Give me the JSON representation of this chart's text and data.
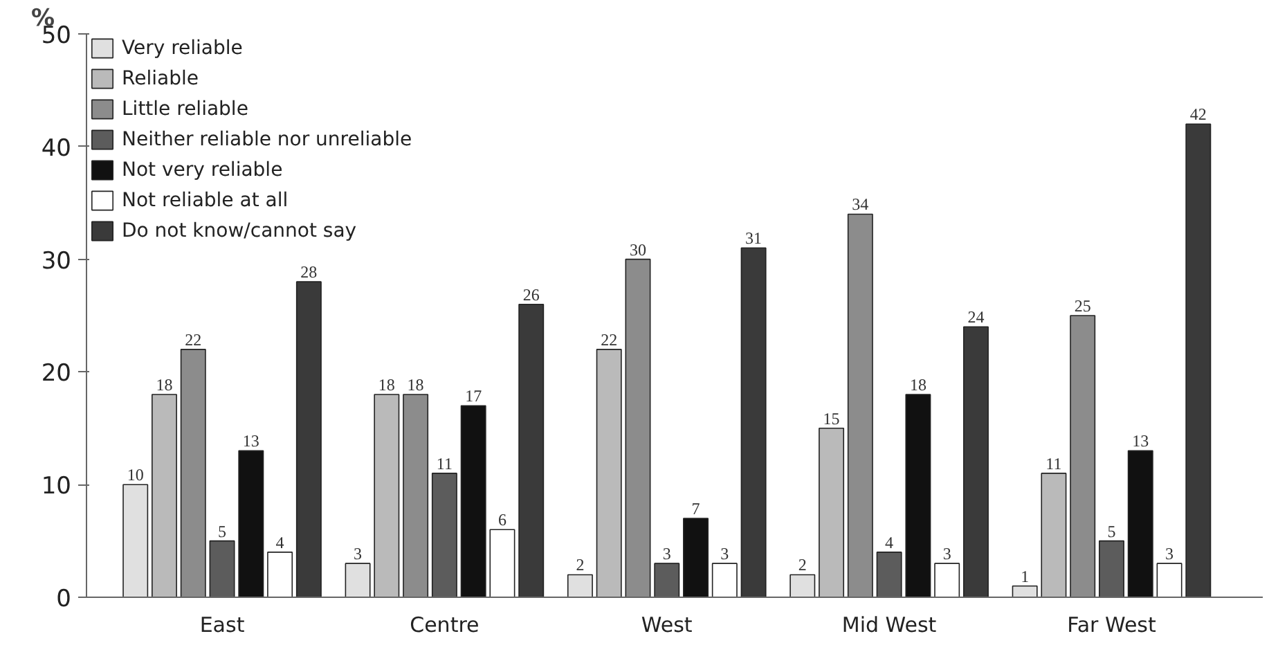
{
  "chart_data": {
    "type": "bar",
    "ylabel": "%",
    "categories": [
      "East",
      "Centre",
      "West",
      "Mid West",
      "Far West"
    ],
    "series": [
      {
        "name": "Very reliable",
        "color": "#e0e0e0",
        "values": [
          10,
          3,
          2,
          2,
          1
        ]
      },
      {
        "name": "Reliable",
        "color": "#bababa",
        "values": [
          18,
          18,
          22,
          15,
          11
        ]
      },
      {
        "name": "Little reliable",
        "color": "#8c8c8c",
        "values": [
          22,
          18,
          30,
          34,
          25
        ]
      },
      {
        "name": "Neither reliable nor unreliable",
        "color": "#5c5c5c",
        "values": [
          5,
          11,
          3,
          4,
          5
        ]
      },
      {
        "name": "Not very reliable",
        "color": "#111111",
        "values": [
          13,
          17,
          7,
          18,
          13
        ]
      },
      {
        "name": "Not reliable at all",
        "color": "#ffffff",
        "values": [
          4,
          6,
          3,
          3,
          3
        ]
      },
      {
        "name": "Do not know/cannot say",
        "color": "#3a3a3a",
        "values": [
          28,
          26,
          31,
          24,
          42
        ]
      }
    ],
    "ylim": [
      0,
      50
    ],
    "yticks": [
      0,
      10,
      20,
      30,
      40,
      50
    ],
    "grid": false,
    "legend": "top left",
    "data_labels": true
  }
}
